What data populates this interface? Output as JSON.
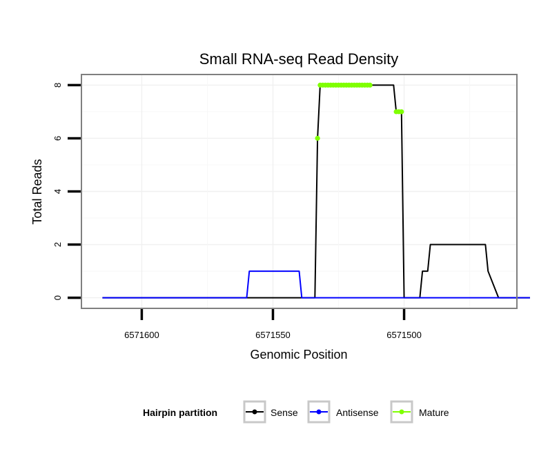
{
  "chart_data": {
    "type": "line",
    "title": "Small RNA-seq Read Density",
    "xlabel": "Genomic Position",
    "ylabel": "Total Reads",
    "x_reversed": true,
    "xlim": [
      6571623,
      6571457
    ],
    "ylim": [
      -0.4,
      8.4
    ],
    "x_ticks": [
      6571600,
      6571550,
      6571500
    ],
    "x_tick_labels": [
      "6571600",
      "6571550",
      "6571500"
    ],
    "y_ticks": [
      0,
      2,
      4,
      6,
      8
    ],
    "y_tick_labels": [
      "0",
      "2",
      "4",
      "6",
      "8"
    ],
    "grid": true,
    "legend": {
      "title": "Hairpin partition",
      "position": "bottom",
      "entries": [
        {
          "name": "Sense",
          "color": "#000000"
        },
        {
          "name": "Antisense",
          "color": "#0000ff"
        },
        {
          "name": "Mature",
          "color": "#7fff00"
        }
      ]
    },
    "series": [
      {
        "name": "Sense",
        "color": "#000000",
        "style": "line",
        "x": [
          6571615,
          6571534,
          6571533,
          6571532,
          6571531,
          6571530,
          6571529,
          6571528,
          6571527,
          6571526,
          6571525,
          6571524,
          6571523,
          6571522,
          6571521,
          6571520,
          6571519,
          6571518,
          6571517,
          6571516,
          6571515,
          6571514,
          6571513,
          6571512,
          6571511,
          6571510,
          6571509,
          6571508,
          6571507,
          6571506,
          6571505,
          6571504,
          6571503,
          6571502,
          6571501,
          6571500,
          6571499,
          6571497,
          6571496,
          6571494,
          6571493,
          6571492,
          6571491,
          6571490,
          6571489,
          6571486,
          6571485,
          6571484,
          6571483,
          6571482,
          6571481,
          6571480,
          6571479,
          6571478,
          6571477,
          6571476,
          6571475,
          6571474,
          6571473,
          6571472,
          6571471,
          6571470,
          6571469,
          6571468,
          6571464,
          6571452
        ],
        "y": [
          0,
          0,
          6,
          8,
          8,
          8,
          8,
          8,
          8,
          8,
          8,
          8,
          8,
          8,
          8,
          8,
          8,
          8,
          8,
          8,
          8,
          8,
          8,
          8,
          8,
          8,
          8,
          8,
          8,
          8,
          8,
          8,
          7,
          7,
          7,
          0,
          0,
          0,
          0,
          0,
          1,
          1,
          1,
          2,
          2,
          2,
          2,
          2,
          2,
          2,
          2,
          2,
          2,
          2,
          2,
          2,
          2,
          2,
          2,
          2,
          2,
          2,
          2,
          1,
          0,
          0
        ]
      },
      {
        "name": "Antisense",
        "color": "#0000ff",
        "style": "line",
        "x": [
          6571615,
          6571560,
          6571559,
          6571540,
          6571539,
          6571452
        ],
        "y": [
          0,
          0,
          1,
          1,
          0,
          0
        ]
      },
      {
        "name": "Mature",
        "color": "#7fff00",
        "style": "points",
        "x": [
          6571533,
          6571532,
          6571531,
          6571530,
          6571529,
          6571528,
          6571527,
          6571526,
          6571525,
          6571524,
          6571523,
          6571522,
          6571521,
          6571520,
          6571519,
          6571518,
          6571517,
          6571516,
          6571515,
          6571514,
          6571513,
          6571503,
          6571502,
          6571501
        ],
        "y": [
          6,
          8,
          8,
          8,
          8,
          8,
          8,
          8,
          8,
          8,
          8,
          8,
          8,
          8,
          8,
          8,
          8,
          8,
          8,
          8,
          8,
          7,
          7,
          7
        ]
      }
    ]
  }
}
